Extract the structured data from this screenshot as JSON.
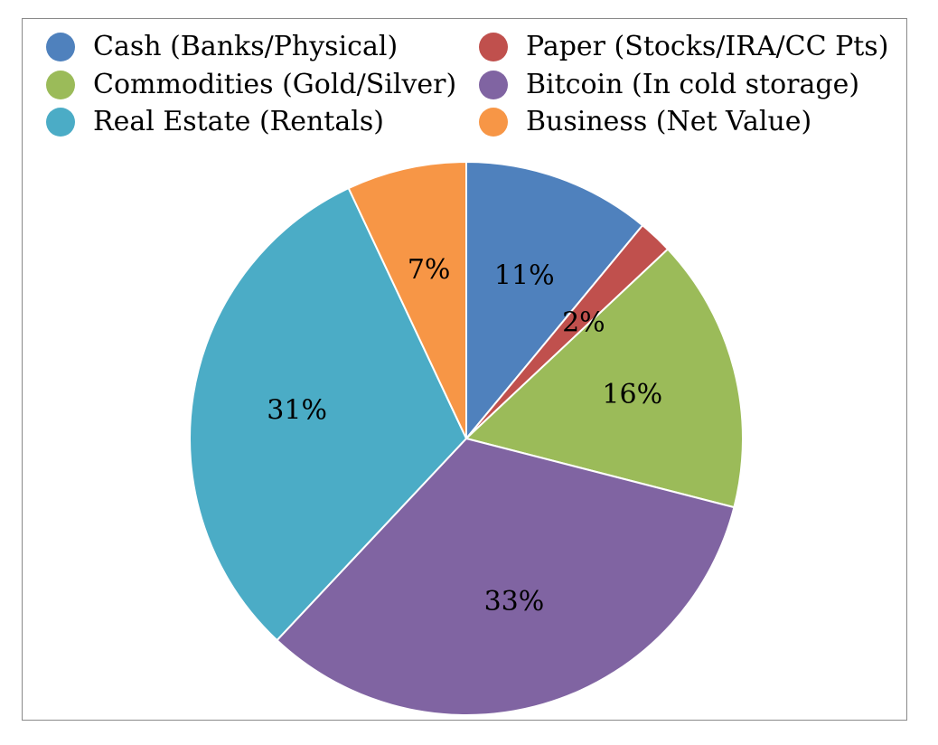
{
  "chart_data": {
    "type": "pie",
    "title": "",
    "legend_position": "top",
    "slices": [
      {
        "name": "Cash (Banks/Physical)",
        "value": 11,
        "label": "11%",
        "color": "#4f81bd"
      },
      {
        "name": "Paper (Stocks/IRA/CC Pts)",
        "value": 2,
        "label": "2%",
        "color": "#c0504d"
      },
      {
        "name": "Commodities (Gold/Silver)",
        "value": 16,
        "label": "16%",
        "color": "#9bbb59"
      },
      {
        "name": "Bitcoin (In cold storage)",
        "value": 33,
        "label": "33%",
        "color": "#8064a2"
      },
      {
        "name": "Real Estate (Rentals)",
        "value": 31,
        "label": "31%",
        "color": "#4bacc6"
      },
      {
        "name": "Business (Net Value)",
        "value": 7,
        "label": "7%",
        "color": "#f79646"
      }
    ]
  }
}
